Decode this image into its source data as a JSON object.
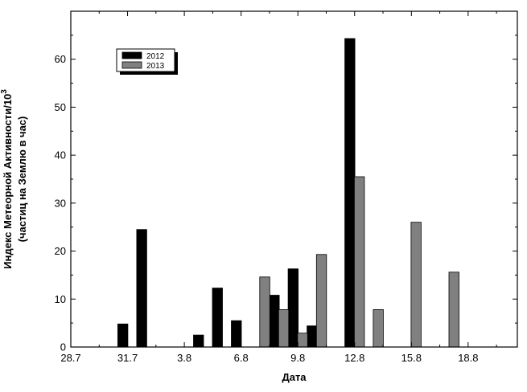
{
  "chart_data": {
    "type": "bar",
    "xlabel": "Дата",
    "ylabel": {
      "line1_prefix": "Индекс Метеорной Активности/10",
      "line1_superscript": "3",
      "line2": "(частиц на Землю в час)"
    },
    "ylim": [
      0,
      70
    ],
    "yticks": [
      0,
      10,
      20,
      30,
      40,
      50,
      60
    ],
    "x_ticks": [
      {
        "label": "28.7",
        "x": 0
      },
      {
        "label": "31.7",
        "x": 3
      },
      {
        "label": "3.8",
        "x": 6
      },
      {
        "label": "6.8",
        "x": 9
      },
      {
        "label": "9.8",
        "x": 12
      },
      {
        "label": "12.8",
        "x": 15
      },
      {
        "label": "15.8",
        "x": 18
      },
      {
        "label": "18.8",
        "x": 21
      }
    ],
    "xlim": [
      0,
      23.6
    ],
    "grid": false,
    "legend_position": "top-left",
    "series": [
      {
        "name": "2012",
        "color": "#000000",
        "points": [
          {
            "x": 2.75,
            "value": 4.8
          },
          {
            "x": 3.75,
            "value": 24.5
          },
          {
            "x": 6.75,
            "value": 2.5
          },
          {
            "x": 7.75,
            "value": 12.3
          },
          {
            "x": 8.75,
            "value": 5.5
          },
          {
            "x": 10.75,
            "value": 10.8
          },
          {
            "x": 11.75,
            "value": 16.3
          },
          {
            "x": 12.75,
            "value": 4.4
          },
          {
            "x": 14.75,
            "value": 64.3
          }
        ]
      },
      {
        "name": "2013",
        "color": "#808080",
        "points": [
          {
            "x": 10.25,
            "value": 14.6
          },
          {
            "x": 11.25,
            "value": 7.8
          },
          {
            "x": 12.25,
            "value": 2.9
          },
          {
            "x": 13.25,
            "value": 19.3
          },
          {
            "x": 15.25,
            "value": 35.5
          },
          {
            "x": 16.25,
            "value": 7.8
          },
          {
            "x": 18.25,
            "value": 26.0
          },
          {
            "x": 20.25,
            "value": 15.6
          }
        ]
      }
    ]
  }
}
